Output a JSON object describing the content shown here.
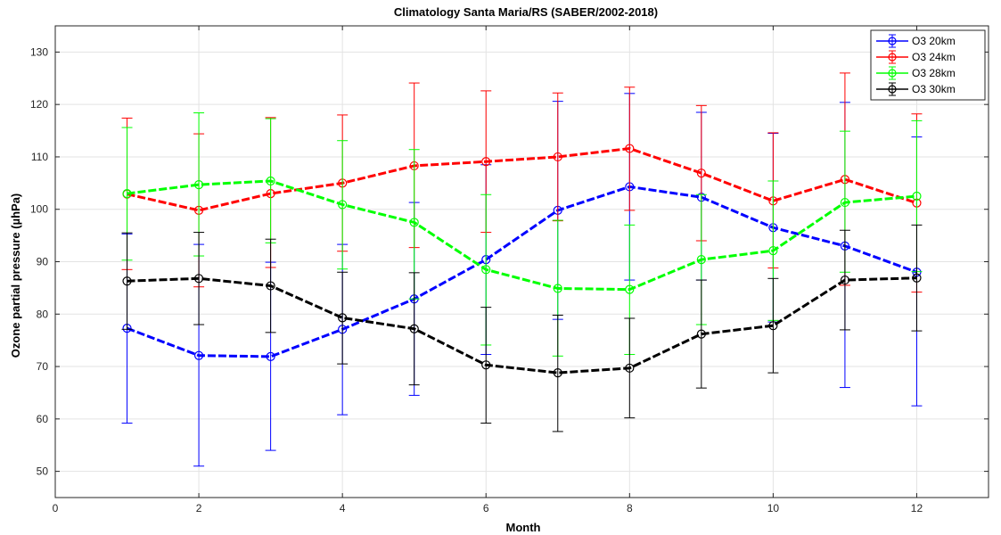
{
  "chart_data": {
    "type": "line",
    "title": "Climatology Santa Maria/RS (SABER/2002-2018)",
    "xlabel": "Month",
    "ylabel": "Ozone partial pressure (µhPa)",
    "xlim": [
      0,
      13
    ],
    "ylim": [
      45,
      135
    ],
    "xticks": [
      0,
      2,
      4,
      6,
      8,
      10,
      12
    ],
    "yticks": [
      50,
      60,
      70,
      80,
      90,
      100,
      110,
      120,
      130
    ],
    "grid": true,
    "legend_position": "top-right",
    "x": [
      1,
      2,
      3,
      4,
      5,
      6,
      7,
      8,
      9,
      10,
      11,
      12
    ],
    "series": [
      {
        "name": "O3 20km",
        "color": "#0000ff",
        "values": [
          77.3,
          72.1,
          71.9,
          77.1,
          82.9,
          90.4,
          99.8,
          104.3,
          102.3,
          96.5,
          93.0,
          88.0
        ],
        "err_low": [
          59.2,
          51.0,
          54.0,
          60.8,
          64.5,
          72.3,
          79.0,
          86.5,
          86.5,
          78.5,
          66.0,
          62.5
        ],
        "err_high": [
          95.3,
          93.3,
          89.9,
          93.3,
          101.3,
          108.5,
          120.6,
          122.1,
          118.5,
          114.5,
          120.4,
          113.8
        ]
      },
      {
        "name": "O3 24km",
        "color": "#ff0000",
        "values": [
          102.9,
          99.8,
          103.0,
          105.0,
          108.3,
          109.1,
          110.0,
          111.6,
          106.9,
          101.6,
          105.7,
          101.2
        ],
        "err_low": [
          88.5,
          85.2,
          88.9,
          92.0,
          92.7,
          95.6,
          97.8,
          99.8,
          94.0,
          88.8,
          85.5,
          84.2
        ],
        "err_high": [
          117.4,
          114.4,
          117.5,
          118.0,
          124.1,
          122.6,
          122.2,
          123.3,
          119.8,
          114.6,
          126.0,
          118.2
        ]
      },
      {
        "name": "O3 28km",
        "color": "#00ff00",
        "values": [
          103.0,
          104.7,
          105.4,
          100.9,
          97.5,
          88.5,
          84.9,
          84.7,
          90.4,
          92.1,
          101.3,
          102.5
        ],
        "err_low": [
          90.3,
          91.1,
          93.6,
          88.6,
          82.9,
          74.1,
          72.0,
          72.3,
          78.0,
          78.8,
          88.0,
          88.1
        ],
        "err_high": [
          115.6,
          118.4,
          117.3,
          113.1,
          111.4,
          102.8,
          97.9,
          97.0,
          102.8,
          105.4,
          114.9,
          116.9
        ]
      },
      {
        "name": "O3 30km",
        "color": "#000000",
        "values": [
          86.3,
          86.8,
          85.4,
          79.3,
          77.2,
          70.3,
          68.8,
          69.7,
          76.2,
          77.8,
          86.5,
          86.9
        ],
        "err_low": [
          77.1,
          78.0,
          76.5,
          70.5,
          66.5,
          59.2,
          57.6,
          60.2,
          65.9,
          68.8,
          77.0,
          76.8
        ],
        "err_high": [
          95.5,
          95.6,
          94.3,
          88.0,
          87.9,
          81.3,
          79.8,
          79.2,
          86.5,
          86.8,
          96.0,
          97.0
        ]
      }
    ]
  }
}
